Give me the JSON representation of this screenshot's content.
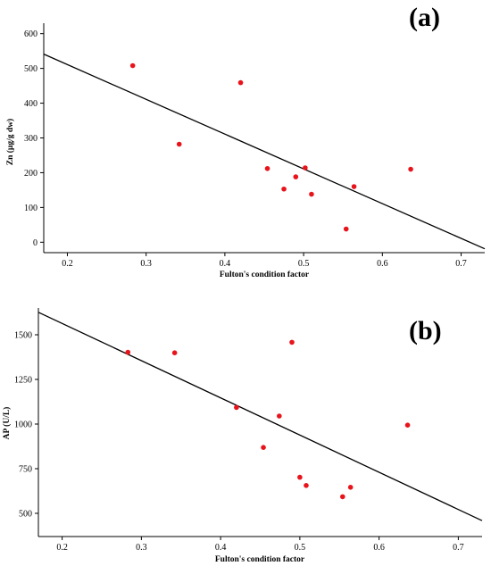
{
  "chart_data": [
    {
      "type": "scatter",
      "panel_label": "(a)",
      "title": "",
      "xlabel": "Fulton's condition factor",
      "ylabel": "Zn (µg/g dw)",
      "xlim": [
        0.17,
        0.73
      ],
      "ylim": [
        -30,
        630
      ],
      "x_ticks": [
        0.2,
        0.3,
        0.4,
        0.5,
        0.6,
        0.7
      ],
      "x_tick_labels": [
        "0.2",
        "0.3",
        "0.4",
        "0.5",
        "0.6",
        "0.7"
      ],
      "y_ticks": [
        0,
        100,
        200,
        300,
        400,
        500,
        600
      ],
      "y_tick_labels": [
        "0",
        "100",
        "200",
        "300",
        "400",
        "500",
        "600"
      ],
      "grid": false,
      "point_color": "#e8141b",
      "points": [
        {
          "x": 0.283,
          "y": 508
        },
        {
          "x": 0.342,
          "y": 282
        },
        {
          "x": 0.42,
          "y": 459
        },
        {
          "x": 0.454,
          "y": 212
        },
        {
          "x": 0.475,
          "y": 153
        },
        {
          "x": 0.49,
          "y": 188
        },
        {
          "x": 0.502,
          "y": 214
        },
        {
          "x": 0.51,
          "y": 138
        },
        {
          "x": 0.554,
          "y": 38
        },
        {
          "x": 0.564,
          "y": 160
        },
        {
          "x": 0.636,
          "y": 210
        }
      ],
      "fit_line": {
        "x": [
          0.17,
          0.73
        ],
        "y": [
          541,
          -19
        ]
      }
    },
    {
      "type": "scatter",
      "panel_label": "(b)",
      "title": "",
      "xlabel": "Fulton's condition factor",
      "ylabel": "AP (U/L)",
      "xlim": [
        0.17,
        0.73
      ],
      "ylim": [
        370,
        1650
      ],
      "x_ticks": [
        0.2,
        0.3,
        0.4,
        0.5,
        0.6,
        0.7
      ],
      "x_tick_labels": [
        "0.2",
        "0.3",
        "0.4",
        "0.5",
        "0.6",
        "0.7"
      ],
      "y_ticks": [
        500,
        750,
        1000,
        1250,
        1500
      ],
      "y_tick_labels": [
        "500",
        "750",
        "1000",
        "1250",
        "1500"
      ],
      "grid": false,
      "point_color": "#e8141b",
      "points": [
        {
          "x": 0.283,
          "y": 1402
        },
        {
          "x": 0.342,
          "y": 1399
        },
        {
          "x": 0.42,
          "y": 1093
        },
        {
          "x": 0.454,
          "y": 869
        },
        {
          "x": 0.474,
          "y": 1045
        },
        {
          "x": 0.49,
          "y": 1458
        },
        {
          "x": 0.5,
          "y": 702
        },
        {
          "x": 0.508,
          "y": 656
        },
        {
          "x": 0.554,
          "y": 593
        },
        {
          "x": 0.564,
          "y": 646
        },
        {
          "x": 0.636,
          "y": 994
        }
      ],
      "fit_line": {
        "x": [
          0.17,
          0.73
        ],
        "y": [
          1626,
          459
        ]
      }
    }
  ]
}
